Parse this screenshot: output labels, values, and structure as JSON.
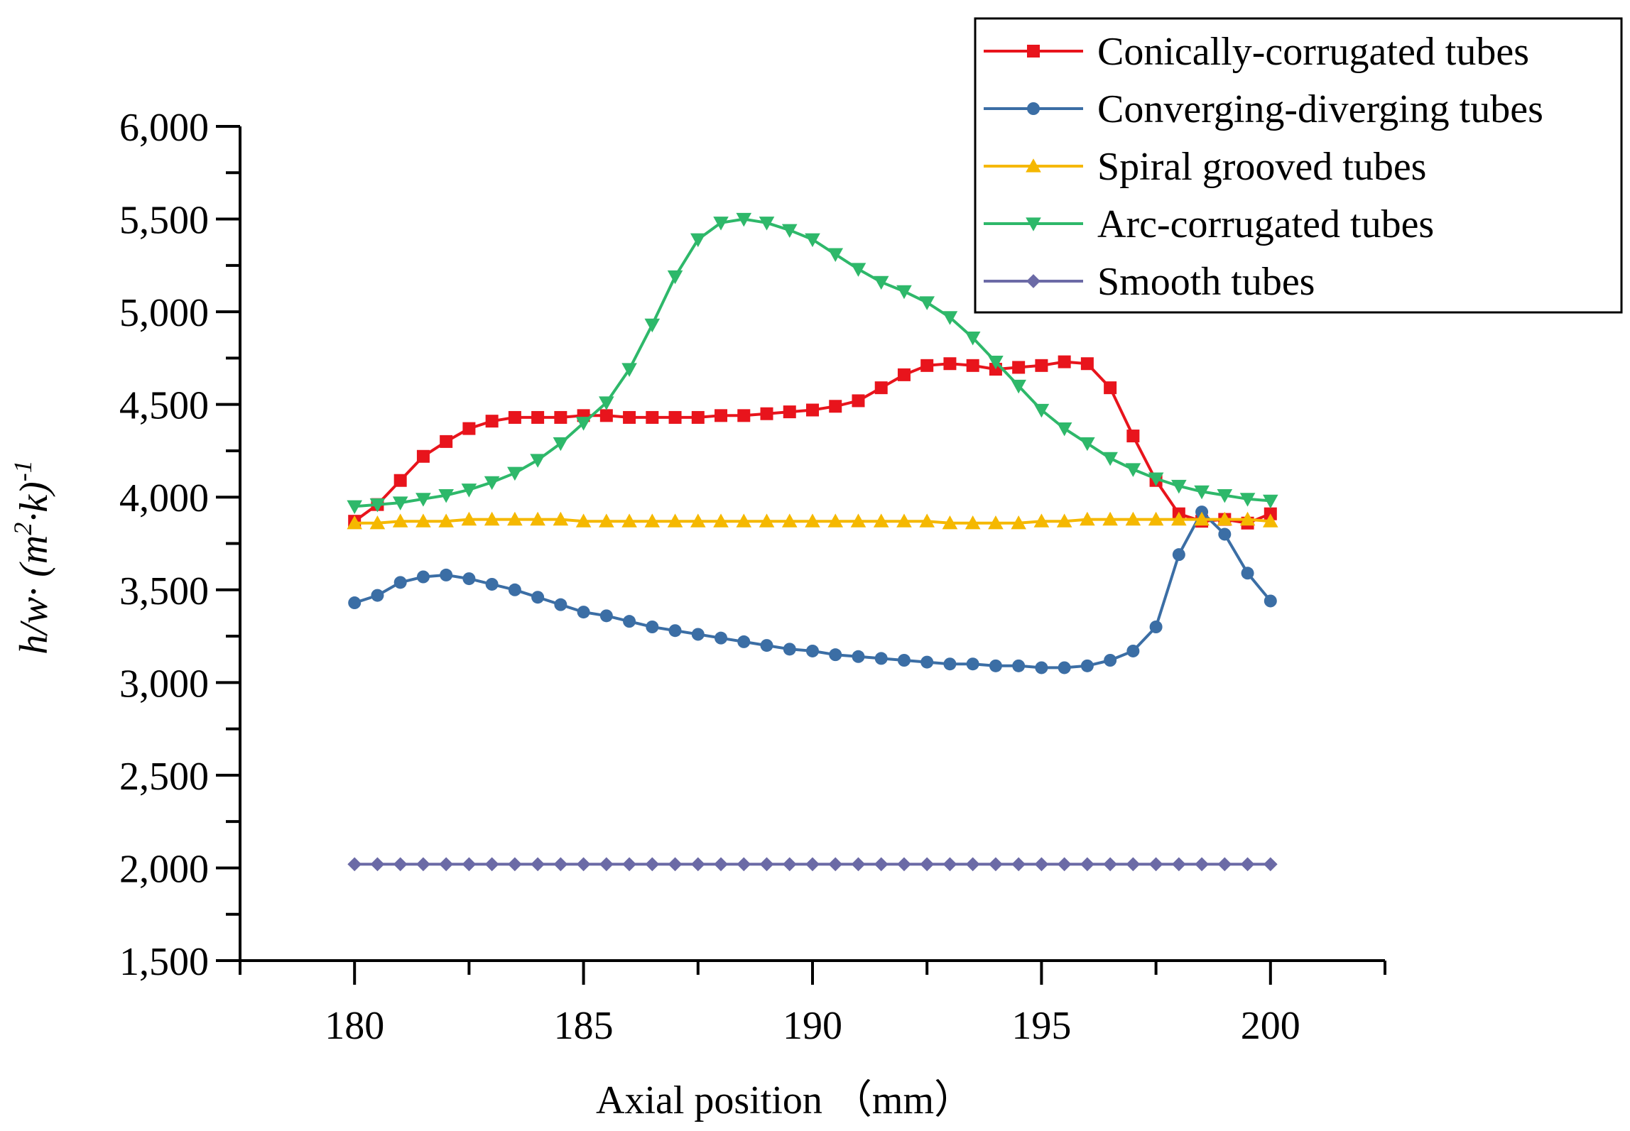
{
  "chart_data": {
    "type": "line",
    "title": "",
    "xlabel": "Axial position （mm）",
    "ylabel": "h/w· (m²·k)⁻¹",
    "ylabel_parts": {
      "main": "h/w· (m",
      "sup1": "2",
      "mid": "·k)",
      "sup2": "-1"
    },
    "xlim": [
      177.5,
      202.5
    ],
    "ylim": [
      1500,
      6000
    ],
    "x_ticks": [
      180,
      185,
      190,
      195,
      200
    ],
    "x_tick_labels": [
      "180",
      "185",
      "190",
      "195",
      "200"
    ],
    "y_ticks": [
      1500,
      2000,
      2500,
      3000,
      3500,
      4000,
      4500,
      5000,
      5500,
      6000
    ],
    "y_tick_labels": [
      "1,500",
      "2,000",
      "2,500",
      "3,000",
      "3,500",
      "4,000",
      "4,500",
      "5,000",
      "5,500",
      "6,000"
    ],
    "legend_position": "top-right",
    "x": [
      180,
      180.5,
      181,
      181.5,
      182,
      182.5,
      183,
      183.5,
      184,
      184.5,
      185,
      185.5,
      186,
      186.5,
      187,
      187.5,
      188,
      188.5,
      189,
      189.5,
      190,
      190.5,
      191,
      191.5,
      192,
      192.5,
      193,
      193.5,
      194,
      194.5,
      195,
      195.5,
      196,
      196.5,
      197,
      197.5,
      198,
      198.5,
      199,
      199.5,
      200
    ],
    "series": [
      {
        "name": "Conically-corrugated tubes",
        "color": "#e8141c",
        "marker": "square",
        "values": [
          3870,
          3960,
          4090,
          4220,
          4300,
          4370,
          4410,
          4430,
          4430,
          4430,
          4440,
          4440,
          4430,
          4430,
          4430,
          4430,
          4440,
          4440,
          4450,
          4460,
          4470,
          4490,
          4520,
          4590,
          4660,
          4710,
          4720,
          4710,
          4690,
          4700,
          4710,
          4730,
          4720,
          4590,
          4330,
          4090,
          3910,
          3870,
          3880,
          3860,
          3910
        ]
      },
      {
        "name": "Converging-diverging tubes",
        "color": "#3b6ea5",
        "marker": "circle",
        "values": [
          3430,
          3470,
          3540,
          3570,
          3580,
          3560,
          3530,
          3500,
          3460,
          3420,
          3380,
          3360,
          3330,
          3300,
          3280,
          3260,
          3240,
          3220,
          3200,
          3180,
          3170,
          3150,
          3140,
          3130,
          3120,
          3110,
          3100,
          3100,
          3090,
          3090,
          3080,
          3080,
          3090,
          3120,
          3170,
          3300,
          3690,
          3920,
          3800,
          3590,
          3440
        ]
      },
      {
        "name": "Spiral grooved tubes",
        "color": "#f5b800",
        "marker": "triangle-up",
        "values": [
          3860,
          3860,
          3870,
          3870,
          3870,
          3880,
          3880,
          3880,
          3880,
          3880,
          3870,
          3870,
          3870,
          3870,
          3870,
          3870,
          3870,
          3870,
          3870,
          3870,
          3870,
          3870,
          3870,
          3870,
          3870,
          3870,
          3860,
          3860,
          3860,
          3860,
          3870,
          3870,
          3880,
          3880,
          3880,
          3880,
          3880,
          3880,
          3880,
          3880,
          3870
        ]
      },
      {
        "name": "Arc-corrugated tubes",
        "color": "#2eb86a",
        "marker": "triangle-down",
        "values": [
          3950,
          3960,
          3970,
          3990,
          4010,
          4040,
          4080,
          4130,
          4200,
          4290,
          4400,
          4510,
          4690,
          4930,
          5190,
          5390,
          5480,
          5500,
          5480,
          5440,
          5390,
          5310,
          5230,
          5160,
          5110,
          5050,
          4970,
          4860,
          4730,
          4600,
          4470,
          4370,
          4290,
          4210,
          4150,
          4100,
          4060,
          4030,
          4010,
          3990,
          3980
        ]
      },
      {
        "name": "Smooth tubes",
        "color": "#6b6aa6",
        "marker": "diamond",
        "values": [
          2020,
          2020,
          2020,
          2020,
          2020,
          2020,
          2020,
          2020,
          2020,
          2020,
          2020,
          2020,
          2020,
          2020,
          2020,
          2020,
          2020,
          2020,
          2020,
          2020,
          2020,
          2020,
          2020,
          2020,
          2020,
          2020,
          2020,
          2020,
          2020,
          2020,
          2020,
          2020,
          2020,
          2020,
          2020,
          2020,
          2020,
          2020,
          2020,
          2020,
          2020
        ]
      }
    ]
  }
}
